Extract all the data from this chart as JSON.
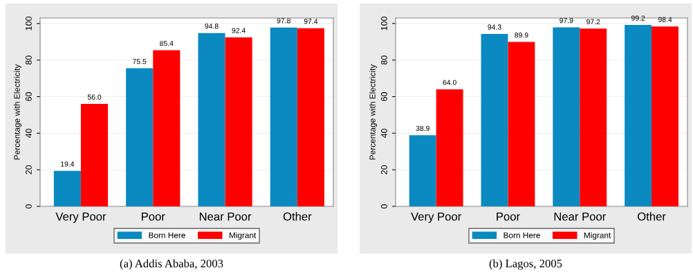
{
  "chart_data": [
    {
      "type": "bar",
      "title": "(a) Addis Ababa, 2003",
      "ylabel": "Percentage with Electricity",
      "categories": [
        "Very Poor",
        "Poor",
        "Near Poor",
        "Other"
      ],
      "series": [
        {
          "name": "Born Here",
          "color": "#0a8ac1",
          "values": [
            19.4,
            75.5,
            94.8,
            97.8
          ]
        },
        {
          "name": "Migrant",
          "color": "#ff0000",
          "values": [
            56.0,
            85.4,
            92.4,
            97.4
          ]
        }
      ],
      "value_labels": [
        [
          "19.4",
          "75.5",
          "94.8",
          "97.8"
        ],
        [
          "56.0",
          "85.4",
          "92.4",
          "97.4"
        ]
      ],
      "ylim": [
        0,
        103
      ],
      "yticks": [
        0,
        20,
        40,
        60,
        80,
        100
      ],
      "grid": "y",
      "legend": "bottom"
    },
    {
      "type": "bar",
      "title": "(b) Lagos, 2005",
      "ylabel": "Percentage with Electricity",
      "categories": [
        "Very Poor",
        "Poor",
        "Near Poor",
        "Other"
      ],
      "series": [
        {
          "name": "Born Here",
          "color": "#0a8ac1",
          "values": [
            38.9,
            94.3,
            97.9,
            99.2
          ]
        },
        {
          "name": "Migrant",
          "color": "#ff0000",
          "values": [
            64.0,
            89.9,
            97.2,
            98.4
          ]
        }
      ],
      "value_labels": [
        [
          "38.9",
          "94.3",
          "97.9",
          "99.2"
        ],
        [
          "64.0",
          "89.9",
          "97.2",
          "98.4"
        ]
      ],
      "ylim": [
        0,
        103
      ],
      "yticks": [
        0,
        20,
        40,
        60,
        80,
        100
      ],
      "grid": "y",
      "legend": "bottom"
    }
  ]
}
